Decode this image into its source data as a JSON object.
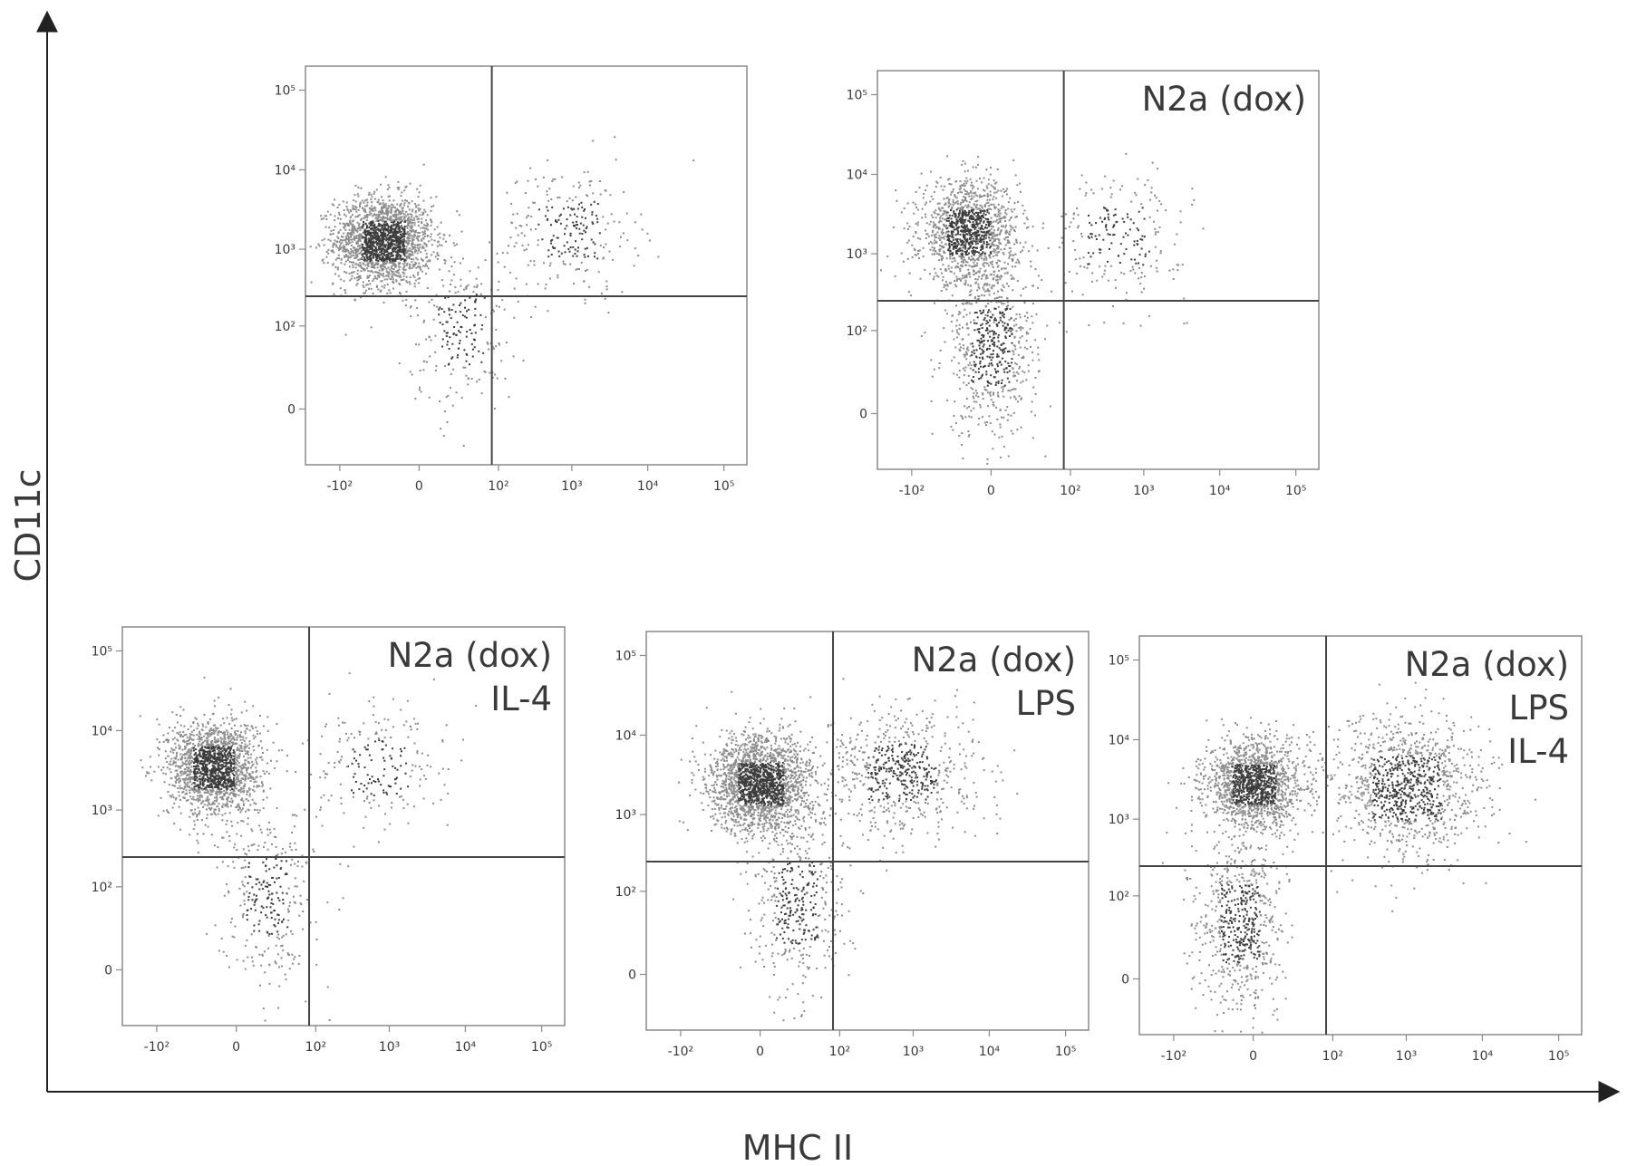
{
  "figure": {
    "xlabel": "MHC II",
    "ylabel": "CD11c"
  },
  "chart_data": [
    {
      "type": "scatter",
      "scale": "biexponential",
      "x_ticks": [
        "-10²",
        "0",
        "10²",
        "10³",
        "10⁴",
        "10⁵"
      ],
      "y_ticks": [
        "0",
        "10²",
        "10³",
        "10⁴",
        "10⁵"
      ],
      "label_lines": [],
      "gate": {
        "x": 80,
        "y": 250
      },
      "clusters": [
        {
          "x": -20,
          "y": 1300,
          "n": 1900,
          "sx": 0.32,
          "sy": 0.28
        },
        {
          "x": 25,
          "y": 90,
          "n": 230,
          "sx": 0.35,
          "sy": 0.5
        },
        {
          "x": 900,
          "y": 1800,
          "n": 260,
          "sx": 0.45,
          "sy": 0.4
        }
      ]
    },
    {
      "type": "scatter",
      "scale": "biexponential",
      "x_ticks": [
        "-10²",
        "0",
        "10²",
        "10³",
        "10⁴",
        "10⁵"
      ],
      "y_ticks": [
        "0",
        "10²",
        "10³",
        "10⁴",
        "10⁵"
      ],
      "label_lines": [
        "N2a (dox)"
      ],
      "gate": {
        "x": 80,
        "y": 250
      },
      "clusters": [
        {
          "x": -10,
          "y": 1900,
          "n": 1300,
          "sx": 0.32,
          "sy": 0.32
        },
        {
          "x": 0,
          "y": 60,
          "n": 650,
          "sx": 0.3,
          "sy": 0.55
        },
        {
          "x": 450,
          "y": 1700,
          "n": 230,
          "sx": 0.45,
          "sy": 0.4
        }
      ]
    },
    {
      "type": "scatter",
      "scale": "biexponential",
      "x_ticks": [
        "-10²",
        "0",
        "10²",
        "10³",
        "10⁴",
        "10⁵"
      ],
      "y_ticks": [
        "0",
        "10²",
        "10³",
        "10⁴",
        "10⁵"
      ],
      "label_lines": [
        "N2a (dox)",
        "IL-4"
      ],
      "gate": {
        "x": 80,
        "y": 250
      },
      "clusters": [
        {
          "x": -10,
          "y": 3500,
          "n": 1700,
          "sx": 0.3,
          "sy": 0.3
        },
        {
          "x": 15,
          "y": 80,
          "n": 320,
          "sx": 0.3,
          "sy": 0.55
        },
        {
          "x": 700,
          "y": 3500,
          "n": 220,
          "sx": 0.45,
          "sy": 0.4
        }
      ]
    },
    {
      "type": "scatter",
      "scale": "biexponential",
      "x_ticks": [
        "-10²",
        "0",
        "10²",
        "10³",
        "10⁴",
        "10⁵"
      ],
      "y_ticks": [
        "0",
        "10²",
        "10³",
        "10⁴",
        "10⁵"
      ],
      "label_lines": [
        "N2a (dox)",
        "LPS"
      ],
      "gate": {
        "x": 80,
        "y": 250
      },
      "clusters": [
        {
          "x": 0,
          "y": 2500,
          "n": 2000,
          "sx": 0.33,
          "sy": 0.3
        },
        {
          "x": 20,
          "y": 70,
          "n": 420,
          "sx": 0.3,
          "sy": 0.6
        },
        {
          "x": 700,
          "y": 3500,
          "n": 650,
          "sx": 0.5,
          "sy": 0.4
        }
      ]
    },
    {
      "type": "scatter",
      "scale": "biexponential",
      "x_ticks": [
        "-10²",
        "0",
        "10²",
        "10³",
        "10⁴",
        "10⁵"
      ],
      "y_ticks": [
        "0",
        "10²",
        "10³",
        "10⁴",
        "10⁵"
      ],
      "label_lines": [
        "N2a (dox)",
        "LPS",
        "IL-4"
      ],
      "gate": {
        "x": 80,
        "y": 250
      },
      "clusters": [
        {
          "x": 0,
          "y": 2800,
          "n": 1500,
          "sx": 0.32,
          "sy": 0.28
        },
        {
          "x": -5,
          "y": 40,
          "n": 650,
          "sx": 0.28,
          "sy": 0.55
        },
        {
          "x": 1000,
          "y": 2500,
          "n": 1100,
          "sx": 0.5,
          "sy": 0.45
        }
      ]
    }
  ]
}
